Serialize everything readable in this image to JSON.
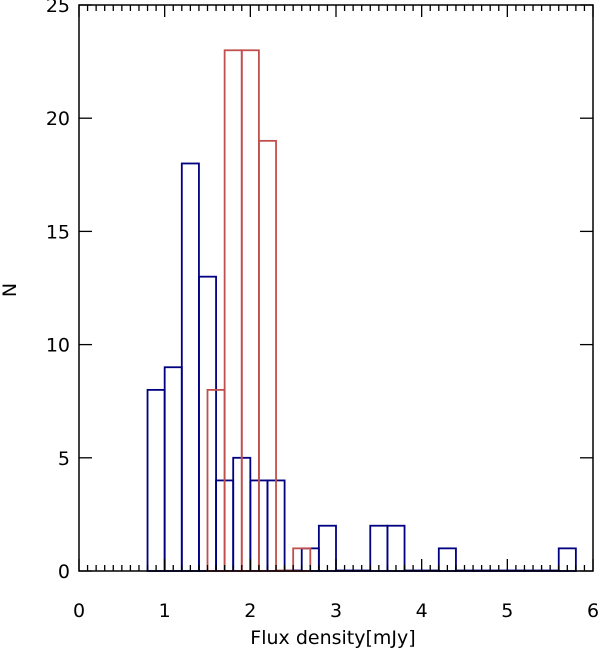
{
  "chart_data": {
    "type": "bar",
    "title": "",
    "xlabel": "Flux density[mJy]",
    "ylabel": "N",
    "xlim": [
      0,
      6
    ],
    "ylim": [
      0,
      25
    ],
    "x_ticks": [
      "0",
      "1",
      "2",
      "3",
      "4",
      "5",
      "6"
    ],
    "y_ticks": [
      "0",
      "5",
      "10",
      "15",
      "20",
      "25"
    ],
    "grid": false,
    "legend": "none",
    "bin_width": 0.2,
    "series": [
      {
        "color": "#000080",
        "bins": [
          {
            "x0": 0.8,
            "x1": 1.0,
            "y": 8
          },
          {
            "x0": 1.0,
            "x1": 1.2,
            "y": 9
          },
          {
            "x0": 1.2,
            "x1": 1.4,
            "y": 18
          },
          {
            "x0": 1.4,
            "x1": 1.6,
            "y": 13
          },
          {
            "x0": 1.6,
            "x1": 1.8,
            "y": 4
          },
          {
            "x0": 1.8,
            "x1": 2.0,
            "y": 5
          },
          {
            "x0": 2.0,
            "x1": 2.2,
            "y": 4
          },
          {
            "x0": 2.2,
            "x1": 2.4,
            "y": 4
          },
          {
            "x0": 2.4,
            "x1": 2.6,
            "y": 0
          },
          {
            "x0": 2.6,
            "x1": 2.8,
            "y": 1
          },
          {
            "x0": 2.8,
            "x1": 3.0,
            "y": 2
          },
          {
            "x0": 3.0,
            "x1": 3.2,
            "y": 0
          },
          {
            "x0": 3.2,
            "x1": 3.4,
            "y": 0
          },
          {
            "x0": 3.4,
            "x1": 3.6,
            "y": 2
          },
          {
            "x0": 3.6,
            "x1": 3.8,
            "y": 2
          },
          {
            "x0": 3.8,
            "x1": 4.0,
            "y": 0
          },
          {
            "x0": 4.0,
            "x1": 4.2,
            "y": 0
          },
          {
            "x0": 4.2,
            "x1": 4.4,
            "y": 1
          },
          {
            "x0": 4.4,
            "x1": 4.6,
            "y": 0
          },
          {
            "x0": 4.6,
            "x1": 4.8,
            "y": 0
          },
          {
            "x0": 4.8,
            "x1": 5.0,
            "y": 0
          },
          {
            "x0": 5.0,
            "x1": 5.2,
            "y": 0
          },
          {
            "x0": 5.2,
            "x1": 5.4,
            "y": 0
          },
          {
            "x0": 5.4,
            "x1": 5.6,
            "y": 0
          },
          {
            "x0": 5.6,
            "x1": 5.8,
            "y": 1
          }
        ]
      },
      {
        "color": "#c0504d",
        "bins": [
          {
            "x0": 1.5,
            "x1": 1.7,
            "y": 8
          },
          {
            "x0": 1.7,
            "x1": 1.9,
            "y": 23
          },
          {
            "x0": 1.9,
            "x1": 2.1,
            "y": 23
          },
          {
            "x0": 2.1,
            "x1": 2.3,
            "y": 19
          },
          {
            "x0": 2.3,
            "x1": 2.5,
            "y": 0
          },
          {
            "x0": 2.5,
            "x1": 2.7,
            "y": 1
          }
        ]
      }
    ]
  }
}
